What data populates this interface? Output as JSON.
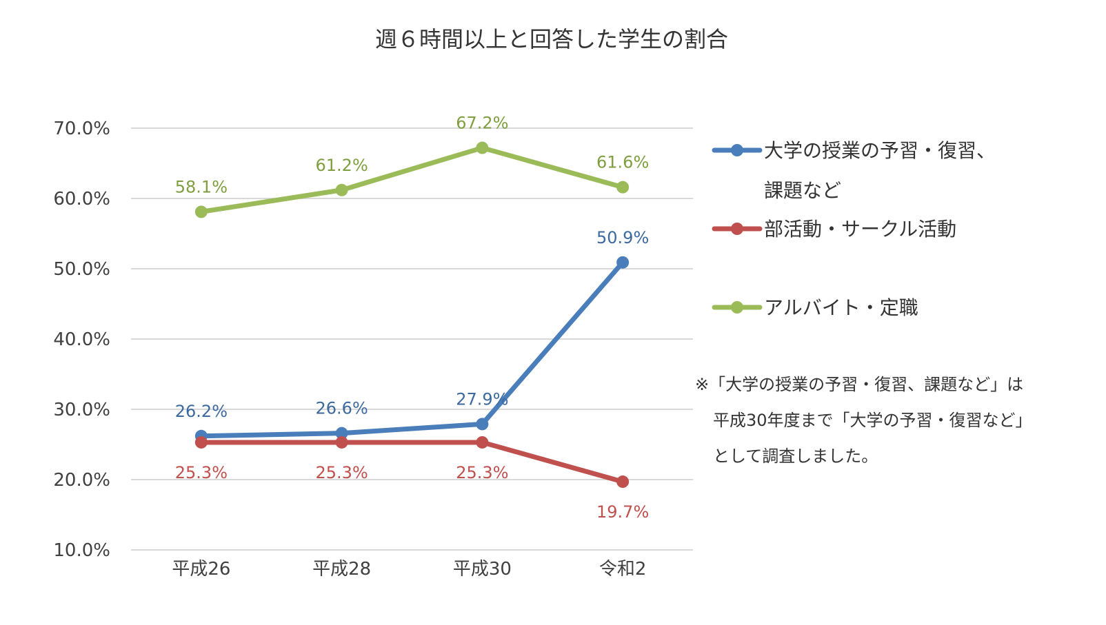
{
  "chart_data": {
    "type": "line",
    "title": "週６時間以上と回答した学生の割合",
    "categories": [
      "平成26",
      "平成28",
      "平成30",
      "令和2"
    ],
    "yticks": [
      "70.0%",
      "60.0%",
      "50.0%",
      "40.0%",
      "30.0%",
      "20.0%",
      "10.0%"
    ],
    "ylim": [
      10,
      70
    ],
    "grid": true,
    "legend_position": "right",
    "series": [
      {
        "name": "大学の授業の予習・復習、課題など",
        "legend_lines": [
          "大学の授業の予習・復習、",
          "課題など"
        ],
        "values": [
          26.2,
          26.6,
          27.9,
          50.9
        ],
        "labels": [
          "26.2%",
          "26.6%",
          "27.9%",
          "50.9%"
        ],
        "color": "#4a7ebb",
        "label_color": "#3c6a9e",
        "label_side": [
          "above",
          "above",
          "above",
          "above"
        ]
      },
      {
        "name": "部活動・サークル活動",
        "legend_lines": [
          "部活動・サークル活動"
        ],
        "values": [
          25.3,
          25.3,
          25.3,
          19.7
        ],
        "labels": [
          "25.3%",
          "25.3%",
          "25.3%",
          "19.7%"
        ],
        "color": "#c0504d",
        "label_color": "#c0504d",
        "label_side": [
          "below",
          "below",
          "below",
          "below"
        ]
      },
      {
        "name": "アルバイト・定職",
        "legend_lines": [
          "アルバイト・定職"
        ],
        "values": [
          58.1,
          61.2,
          67.2,
          61.6
        ],
        "labels": [
          "58.1%",
          "61.2%",
          "67.2%",
          "61.6%"
        ],
        "color": "#9bbb59",
        "label_color": "#7f9e3f",
        "label_side": [
          "above",
          "above",
          "above",
          "above"
        ]
      }
    ],
    "note": [
      "※「大学の授業の予習・復習、課題など」は",
      "平成30年度まで「大学の予習・復習など」",
      "として調査しました。"
    ]
  }
}
